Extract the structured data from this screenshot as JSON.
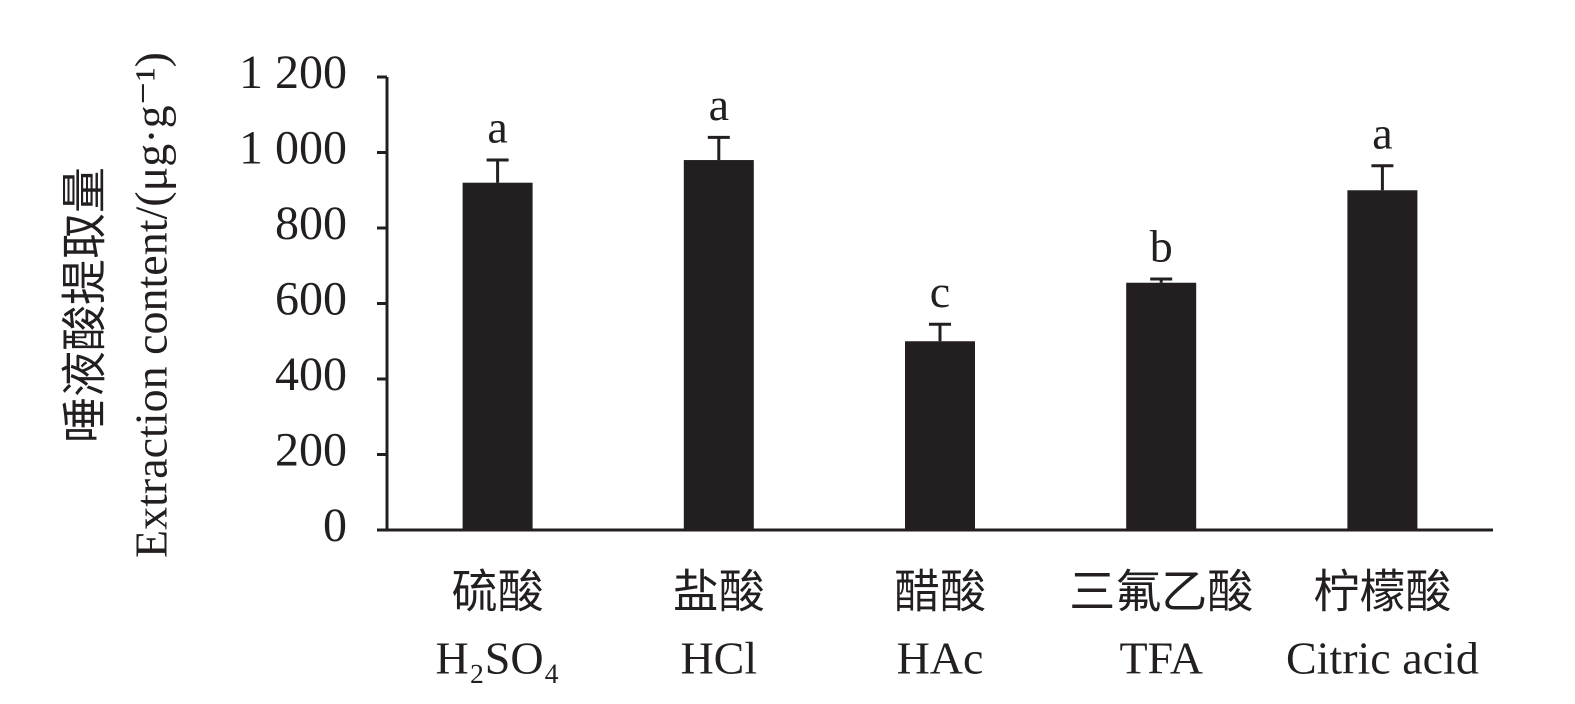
{
  "chart_data": {
    "type": "bar",
    "y_label": [
      "唾液酸提取量",
      "Extraction content/(μg·g⁻¹)"
    ],
    "categories": [
      "硫酸",
      "盐酸",
      "醋酸",
      "三氟乙酸",
      "柠檬酸"
    ],
    "categories_en": [
      "H₂SO₄",
      "HCl",
      "HAc",
      "TFA",
      "Citric acid"
    ],
    "values": [
      920,
      980,
      500,
      655,
      900
    ],
    "errors": [
      60,
      60,
      45,
      10,
      65
    ],
    "annotations": [
      "a",
      "a",
      "c",
      "b",
      "a"
    ],
    "color": "#231f20",
    "ylim": [
      0,
      1200
    ],
    "yticks": [
      0,
      200,
      400,
      600,
      800,
      {
        "value": 1000,
        "label": "1 000"
      },
      {
        "value": 1200,
        "label": "1 200"
      }
    ],
    "grid": false
  }
}
